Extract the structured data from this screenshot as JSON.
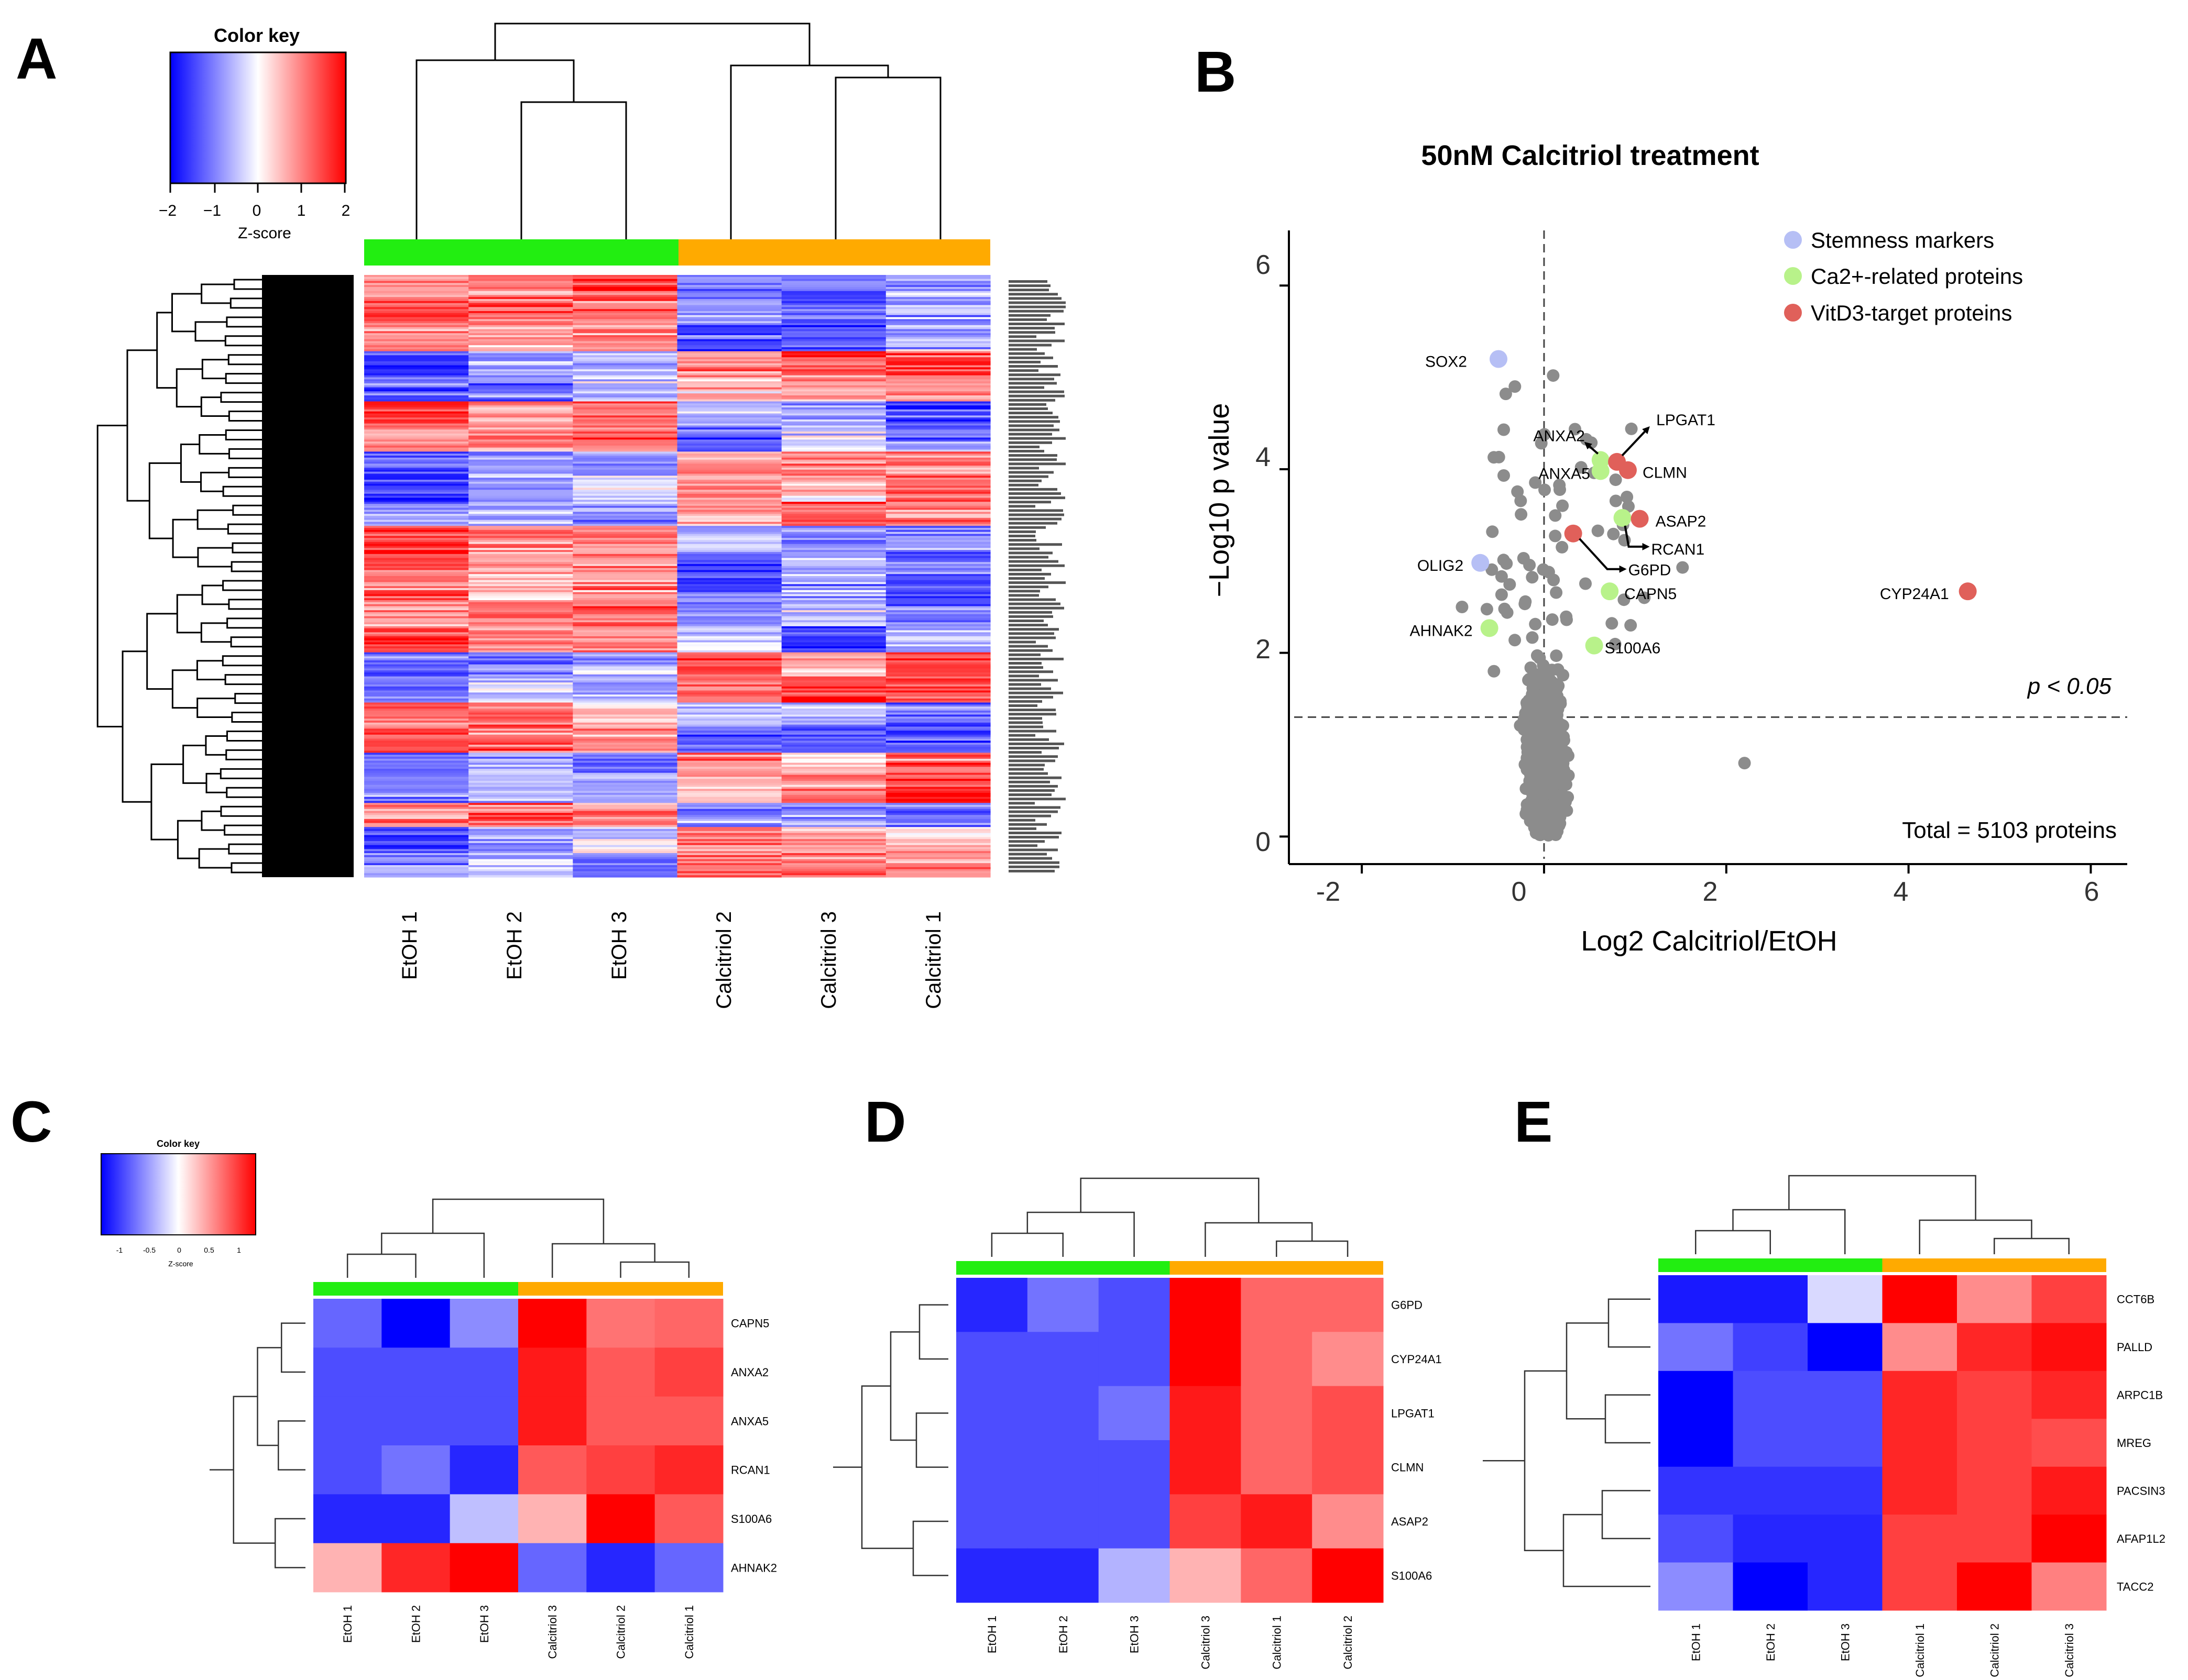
{
  "panelA": {
    "label": "A",
    "color_key": {
      "title": "Color key",
      "ticks": [
        "−2",
        "−1",
        "0",
        "1",
        "2"
      ],
      "xlabel": "Z-score"
    },
    "columns": [
      "EtOH 1",
      "EtOH 2",
      "EtOH 3",
      "Calcitriol 2",
      "Calcitriol 3",
      "Calcitriol 1"
    ],
    "group_colors": {
      "EtOH": "#22ee11",
      "Calcitriol": "#ffaa00"
    }
  },
  "panelB": {
    "label": "B",
    "chart_data": {
      "type": "scatter",
      "title": "50nM Calcitriol treatment",
      "xlabel": "Log2 Calcitriol/EtOH",
      "ylabel": "−Log10 p value",
      "xlim": [
        -2.8,
        6.4
      ],
      "ylim": [
        -0.3,
        6.6
      ],
      "xticks": [
        "-2",
        "0",
        "2",
        "4",
        "6"
      ],
      "yticks": [
        "0",
        "2",
        "4",
        "6"
      ],
      "threshold_label": "p < 0.05",
      "total_label": "Total = 5103 proteins",
      "legend": [
        {
          "name": "Stemness markers",
          "color": "#b6bff5"
        },
        {
          "name": "Ca2+-related proteins",
          "color": "#b8f28a"
        },
        {
          "name": "VitD3-target proteins",
          "color": "#e0605a"
        }
      ],
      "highlighted": [
        {
          "label": "SOX2",
          "x": -0.5,
          "y": 5.2,
          "group": "Stemness markers"
        },
        {
          "label": "OLIG2",
          "x": -0.7,
          "y": 2.98,
          "group": "Stemness markers"
        },
        {
          "label": "ANXA2",
          "x": 0.62,
          "y": 4.1,
          "group": "Ca2+-related proteins"
        },
        {
          "label": "ANXA5",
          "x": 0.62,
          "y": 3.98,
          "group": "Ca2+-related proteins"
        },
        {
          "label": "AHNAK2",
          "x": -0.6,
          "y": 2.27,
          "group": "Ca2+-related proteins"
        },
        {
          "label": "CAPN5",
          "x": 0.72,
          "y": 2.67,
          "group": "Ca2+-related proteins"
        },
        {
          "label": "S100A6",
          "x": 0.55,
          "y": 2.08,
          "group": "Ca2+-related proteins"
        },
        {
          "label": "RCAN1",
          "x": 0.86,
          "y": 3.47,
          "group": "Ca2+-related proteins"
        },
        {
          "label": "LPGAT1",
          "x": 0.8,
          "y": 4.08,
          "group": "VitD3-target proteins"
        },
        {
          "label": "CLMN",
          "x": 0.92,
          "y": 3.99,
          "group": "VitD3-target proteins"
        },
        {
          "label": "ASAP2",
          "x": 1.05,
          "y": 3.46,
          "group": "VitD3-target proteins"
        },
        {
          "label": "G6PD",
          "x": 0.32,
          "y": 3.3,
          "group": "VitD3-target proteins"
        },
        {
          "label": "CYP24A1",
          "x": 4.65,
          "y": 2.67,
          "group": "VitD3-target proteins"
        }
      ],
      "outliers": [
        {
          "x": 2.2,
          "y": 0.8
        },
        {
          "x": 1.52,
          "y": 2.93
        },
        {
          "x": -0.32,
          "y": 4.9
        },
        {
          "x": -0.42,
          "y": 4.82
        },
        {
          "x": 0.1,
          "y": 5.02
        },
        {
          "x": -0.9,
          "y": 2.5
        },
        {
          "x": 1.1,
          "y": 2.6
        },
        {
          "x": 0.95,
          "y": 2.3
        },
        {
          "x": -0.55,
          "y": 1.8
        }
      ]
    }
  },
  "panelC": {
    "label": "C",
    "color_key": {
      "title": "Color key",
      "ticks": [
        "-1",
        "-0.5",
        "0",
        "0.5",
        "1"
      ],
      "xlabel": "Z-score"
    },
    "rows": [
      "CAPN5",
      "ANXA2",
      "ANXA5",
      "RCAN1",
      "S100A6",
      "AHNAK2"
    ],
    "columns": [
      "EtOH 1",
      "EtOH 2",
      "EtOH 3",
      "Calcitriol 3",
      "Calcitriol 2",
      "Calcitriol 1"
    ],
    "values": [
      [
        -0.6,
        -1.0,
        -0.45,
        1.0,
        0.55,
        0.6
      ],
      [
        -0.7,
        -0.7,
        -0.7,
        0.9,
        0.65,
        0.75
      ],
      [
        -0.7,
        -0.7,
        -0.7,
        0.9,
        0.65,
        0.65
      ],
      [
        -0.7,
        -0.55,
        -0.85,
        0.65,
        0.75,
        0.85
      ],
      [
        -0.85,
        -0.85,
        -0.25,
        0.3,
        1.0,
        0.65
      ],
      [
        0.3,
        0.85,
        1.0,
        -0.6,
        -0.85,
        -0.6
      ]
    ]
  },
  "panelD": {
    "label": "D",
    "rows": [
      "G6PD",
      "CYP24A1",
      "LPGAT1",
      "CLMN",
      "ASAP2",
      "S100A6"
    ],
    "columns": [
      "EtOH 1",
      "EtOH 2",
      "EtOH 3",
      "Calcitriol 3",
      "Calcitriol 1",
      "Calcitriol 2"
    ],
    "values": [
      [
        -0.85,
        -0.55,
        -0.7,
        1.0,
        0.6,
        0.6
      ],
      [
        -0.7,
        -0.7,
        -0.7,
        1.0,
        0.6,
        0.45
      ],
      [
        -0.7,
        -0.7,
        -0.55,
        0.9,
        0.6,
        0.7
      ],
      [
        -0.7,
        -0.7,
        -0.7,
        0.9,
        0.6,
        0.7
      ],
      [
        -0.7,
        -0.7,
        -0.7,
        0.75,
        0.9,
        0.45
      ],
      [
        -0.85,
        -0.85,
        -0.3,
        0.3,
        0.6,
        1.0
      ]
    ]
  },
  "panelE": {
    "label": "E",
    "rows": [
      "CCT6B",
      "PALLD",
      "ARPC1B",
      "MREG",
      "PACSIN3",
      "AFAP1L2",
      "TACC2"
    ],
    "columns": [
      "EtOH 1",
      "EtOH 2",
      "EtOH 3",
      "Calcitriol 1",
      "Calcitriol 2",
      "Calcitriol 3"
    ],
    "values": [
      [
        -0.9,
        -0.9,
        -0.15,
        1.0,
        0.45,
        0.75
      ],
      [
        -0.55,
        -0.75,
        -1.0,
        0.45,
        0.85,
        0.95
      ],
      [
        -1.0,
        -0.7,
        -0.7,
        0.85,
        0.75,
        0.85
      ],
      [
        -1.0,
        -0.7,
        -0.7,
        0.85,
        0.75,
        0.7
      ],
      [
        -0.8,
        -0.8,
        -0.8,
        0.85,
        0.75,
        0.9
      ],
      [
        -0.7,
        -0.85,
        -0.85,
        0.75,
        0.75,
        1.0
      ],
      [
        -0.45,
        -1.0,
        -0.85,
        0.75,
        1.0,
        0.5
      ]
    ]
  }
}
